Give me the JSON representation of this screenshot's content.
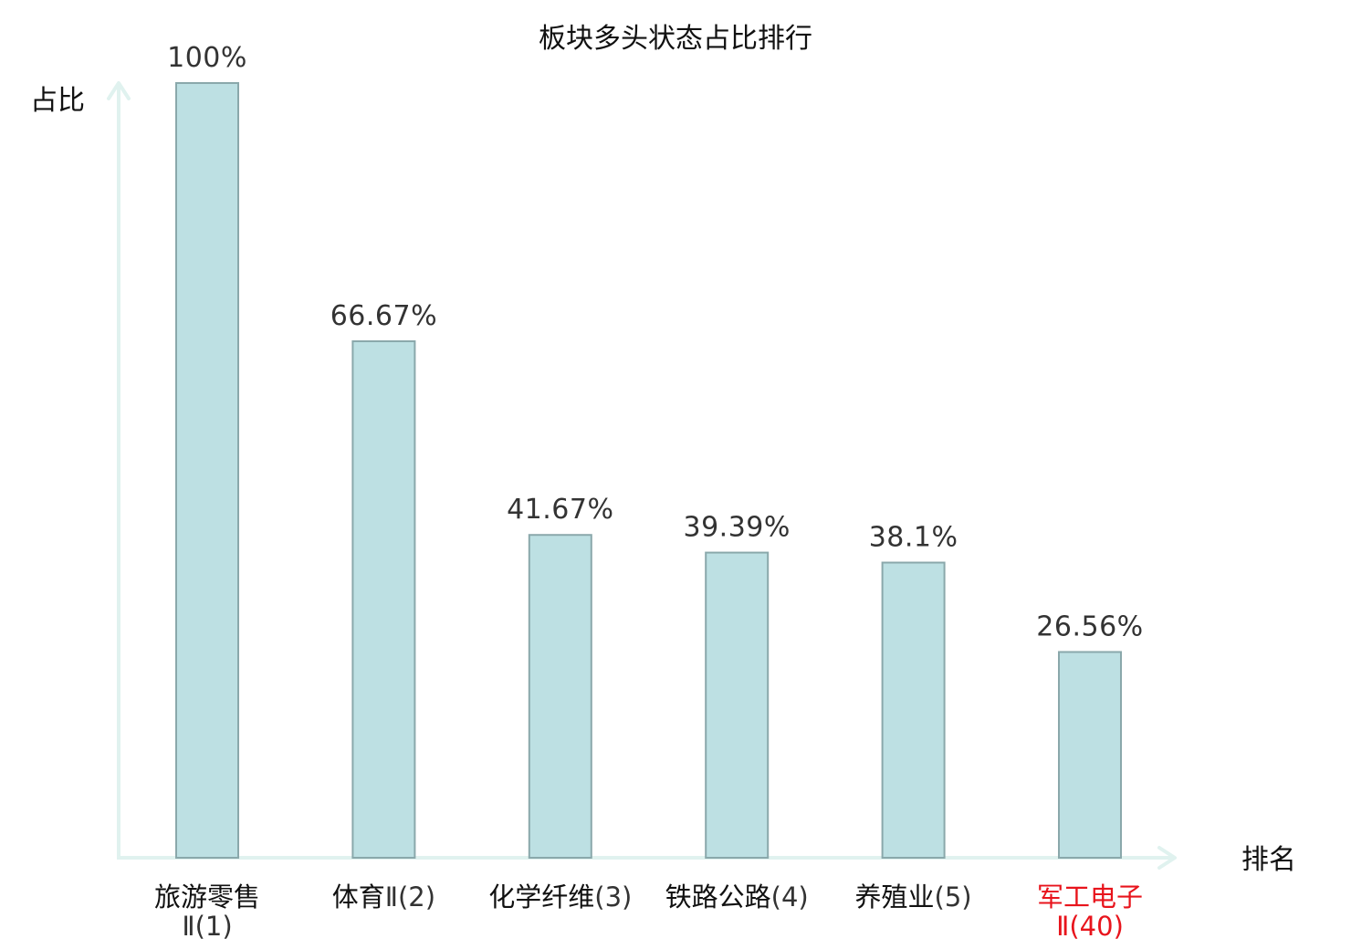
{
  "chart_data": {
    "type": "bar",
    "title": "板块多头状态占比排行",
    "ylabel": "占比",
    "xlabel": "排名",
    "ylim": [
      0,
      100
    ],
    "grid": false,
    "categories": [
      {
        "name": "旅游零售",
        "rank": "Ⅱ(1)",
        "highlight": false
      },
      {
        "name": "体育",
        "rank": "Ⅱ(2)",
        "highlight": false
      },
      {
        "name": "化学纤维",
        "rank": "(3)",
        "highlight": false
      },
      {
        "name": "铁路公路",
        "rank": "(4)",
        "highlight": false
      },
      {
        "name": "养殖业",
        "rank": "(5)",
        "highlight": false
      },
      {
        "name": "军工电子",
        "rank": "Ⅱ(40)",
        "highlight": true
      }
    ],
    "values": [
      100,
      66.67,
      41.67,
      39.39,
      38.1,
      26.56
    ],
    "value_labels": [
      "100%",
      "66.67%",
      "41.67%",
      "39.39%",
      "38.1%",
      "26.56%"
    ],
    "colors": {
      "bar_fill": "#bde0e3",
      "bar_stroke": "#8aa8ab",
      "axis": "#e0f2ef",
      "highlight_text": "#e8141c",
      "normal_text": "#111111",
      "rank_text": "#333333"
    }
  }
}
